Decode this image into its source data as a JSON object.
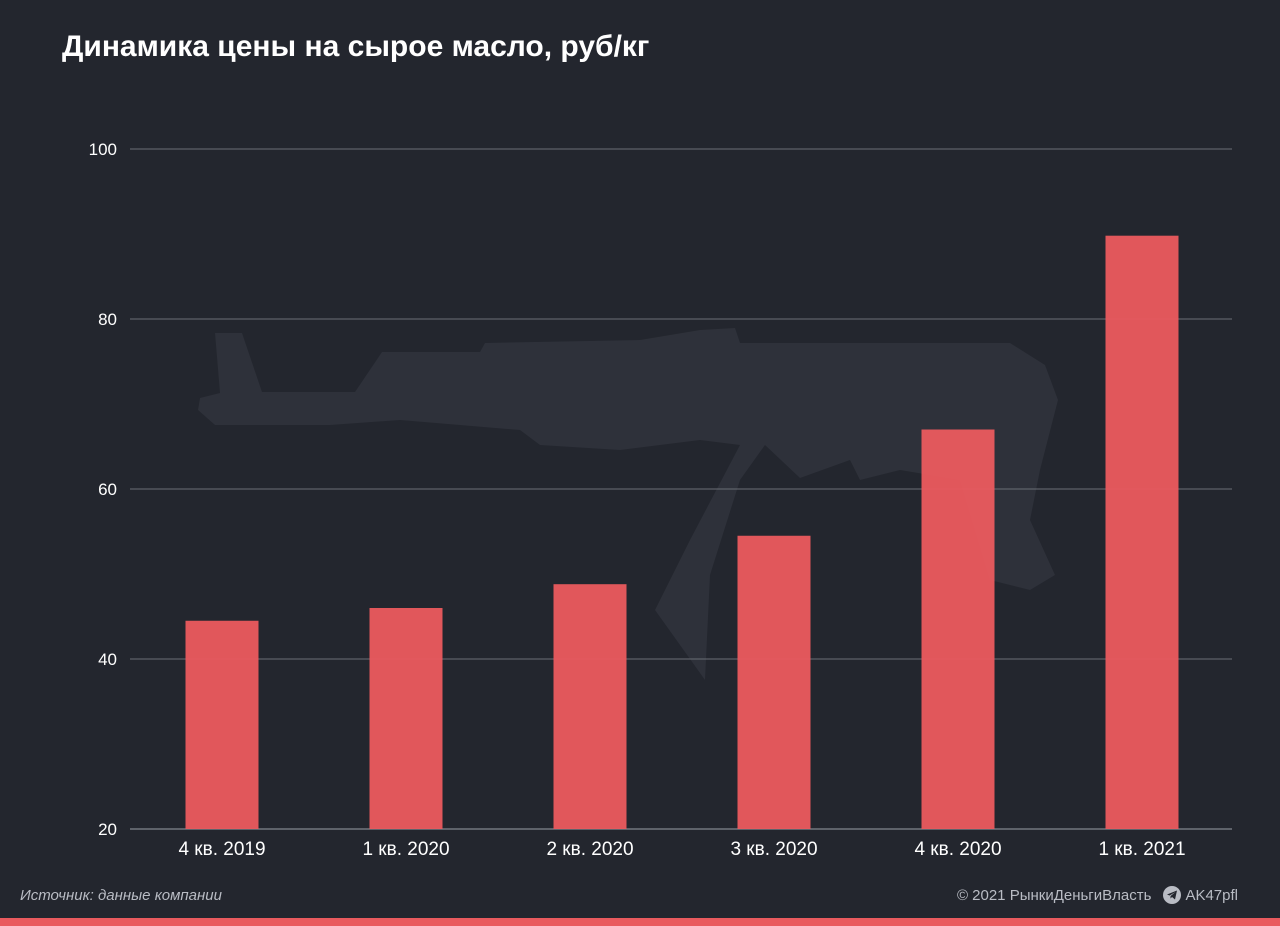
{
  "chart_data": {
    "type": "bar",
    "title": "Динамика цены на сырое масло, руб/кг",
    "categories": [
      "4 кв. 2019",
      "1 кв. 2020",
      "2 кв. 2020",
      "3 кв. 2020",
      "4 кв. 2020",
      "1 кв. 2021"
    ],
    "values": [
      44.5,
      46.0,
      48.8,
      54.5,
      67.0,
      89.8
    ],
    "ylim": [
      20,
      100
    ],
    "yticks": [
      20,
      40,
      60,
      80,
      100
    ],
    "grid": true,
    "bar_color": "#e95a5e",
    "xlabel": "",
    "ylabel": ""
  },
  "footer": {
    "source": "Источник: данные компании",
    "copyright": "© 2021  РынкиДеньгиВласть",
    "telegram": "AK47pfl"
  },
  "icons": {
    "telegram": "telegram-icon",
    "watermark": "rifle-silhouette-icon"
  },
  "colors": {
    "background": "#23262e",
    "accent": "#e95a5e"
  }
}
